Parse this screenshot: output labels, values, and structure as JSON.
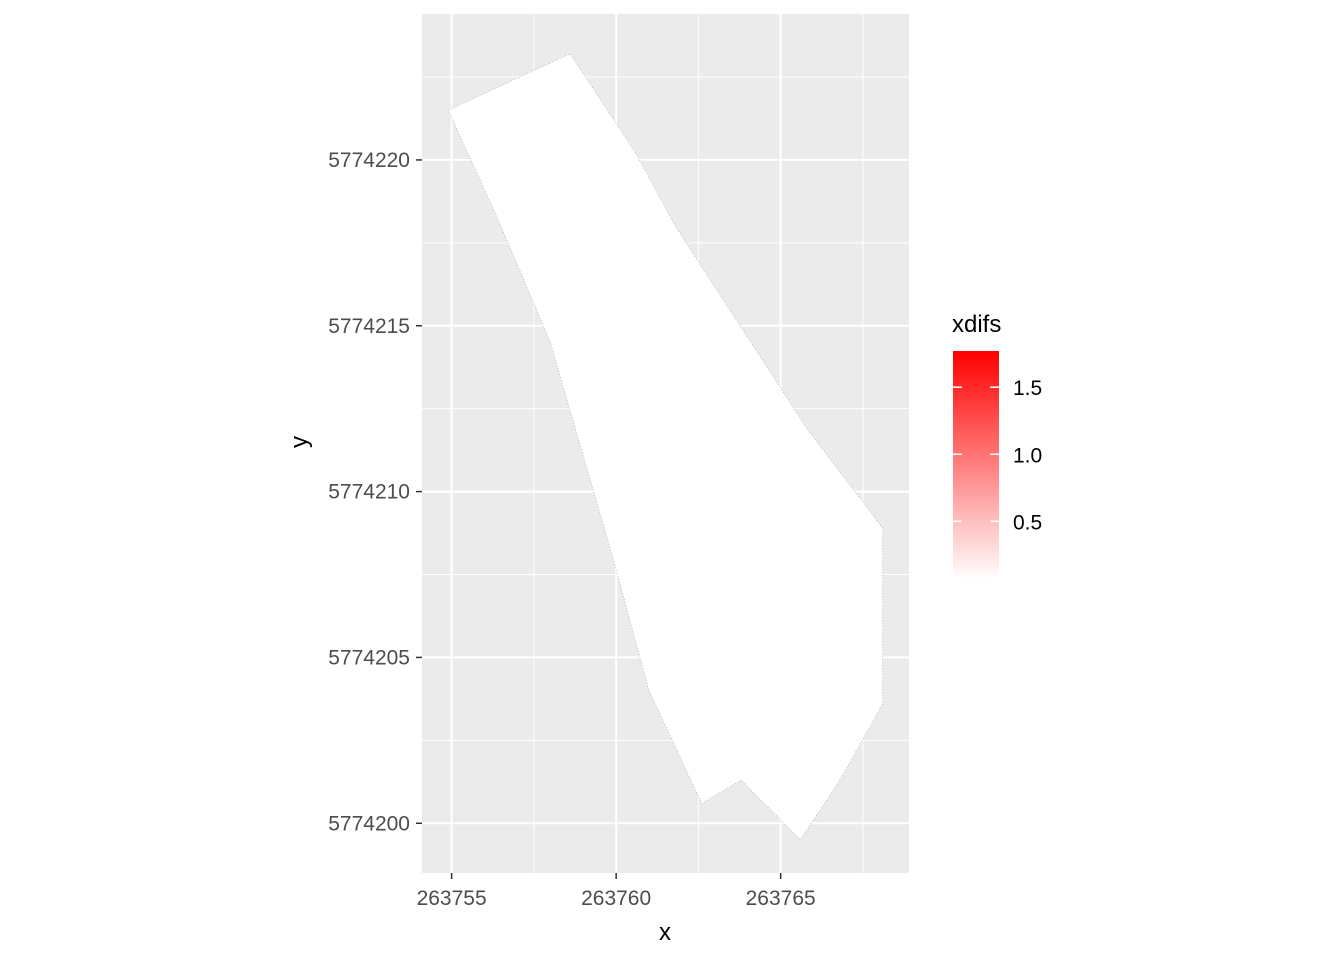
{
  "chart_data": {
    "type": "heatmap",
    "title": "",
    "xlabel": "x",
    "ylabel": "y",
    "xlim": [
      263754.1,
      263768.9
    ],
    "ylim": [
      5774198.5,
      5774224.4
    ],
    "x_ticks": [
      263755,
      263760,
      263765
    ],
    "x_tick_labels": [
      "263755",
      "263760",
      "263765"
    ],
    "y_ticks": [
      5774200,
      5774205,
      5774210,
      5774215,
      5774220
    ],
    "y_tick_labels": [
      "5774200",
      "5774205",
      "5774210",
      "5774215",
      "5774220"
    ],
    "grid": true,
    "panel_background": "#ebebeb",
    "grid_color": "#ffffff",
    "fill_color": "#ffffff",
    "fill_variable": "xdifs",
    "fill_region_outline": [
      [
        263754.9,
        5774221.5
      ],
      [
        263758.6,
        5774223.2
      ],
      [
        263760.6,
        5774220.2
      ],
      [
        263761.8,
        5774218.0
      ],
      [
        263765.8,
        5774211.9
      ],
      [
        263768.1,
        5774208.9
      ],
      [
        263768.1,
        5774203.6
      ],
      [
        263766.8,
        5774201.3
      ],
      [
        263765.6,
        5774199.5
      ],
      [
        263763.8,
        5774201.3
      ],
      [
        263762.6,
        5774200.6
      ],
      [
        263761.0,
        5774204.0
      ],
      [
        263759.9,
        5774208.0
      ],
      [
        263758.0,
        5774214.5
      ],
      [
        263756.5,
        5774218.0
      ]
    ],
    "legend": {
      "title": "xdifs",
      "position": "right",
      "colors": [
        "#ffffff",
        "#ff0000"
      ],
      "range": [
        0.07,
        1.77
      ],
      "breaks": [
        0.5,
        1.0,
        1.5
      ],
      "break_labels": [
        "0.5",
        "1.0",
        "1.5"
      ]
    }
  }
}
